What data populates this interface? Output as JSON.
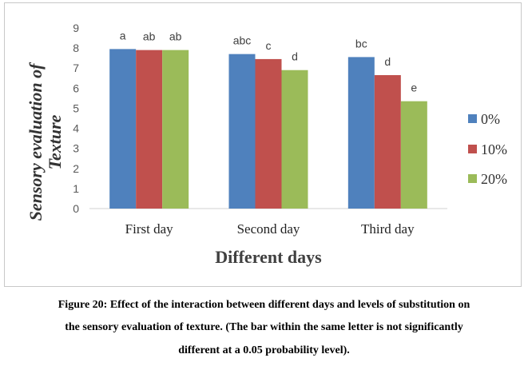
{
  "chart_data": {
    "type": "bar",
    "categories": [
      "First day",
      "Second day",
      "Third day"
    ],
    "series": [
      {
        "name": "0%",
        "color": "#4F81BD",
        "values": [
          7.95,
          7.7,
          7.55
        ],
        "labels": [
          "a",
          "abc",
          "bc"
        ]
      },
      {
        "name": "10%",
        "color": "#C0504D",
        "values": [
          7.9,
          7.45,
          6.65
        ],
        "labels": [
          "ab",
          "c",
          "d"
        ]
      },
      {
        "name": "20%",
        "color": "#9BBB59",
        "values": [
          7.9,
          6.9,
          5.35
        ],
        "labels": [
          "ab",
          "d",
          "e"
        ]
      }
    ],
    "title": "",
    "xlabel": "Different days",
    "ylabel_line1": "Sensory evaluation of",
    "ylabel_line2": "Texture",
    "ylim": [
      0,
      9
    ],
    "yticks": [
      "0",
      "1",
      "2",
      "3",
      "4",
      "5",
      "6",
      "7",
      "8",
      "9"
    ],
    "grid": false,
    "legend_position": "right"
  },
  "caption": {
    "line1": "Figure 20: Effect of the interaction between different days and levels of substitution on",
    "line2": "the sensory evaluation of texture. (The bar within the same letter is not significantly",
    "line3": "different at a 0.05 probability level)."
  }
}
